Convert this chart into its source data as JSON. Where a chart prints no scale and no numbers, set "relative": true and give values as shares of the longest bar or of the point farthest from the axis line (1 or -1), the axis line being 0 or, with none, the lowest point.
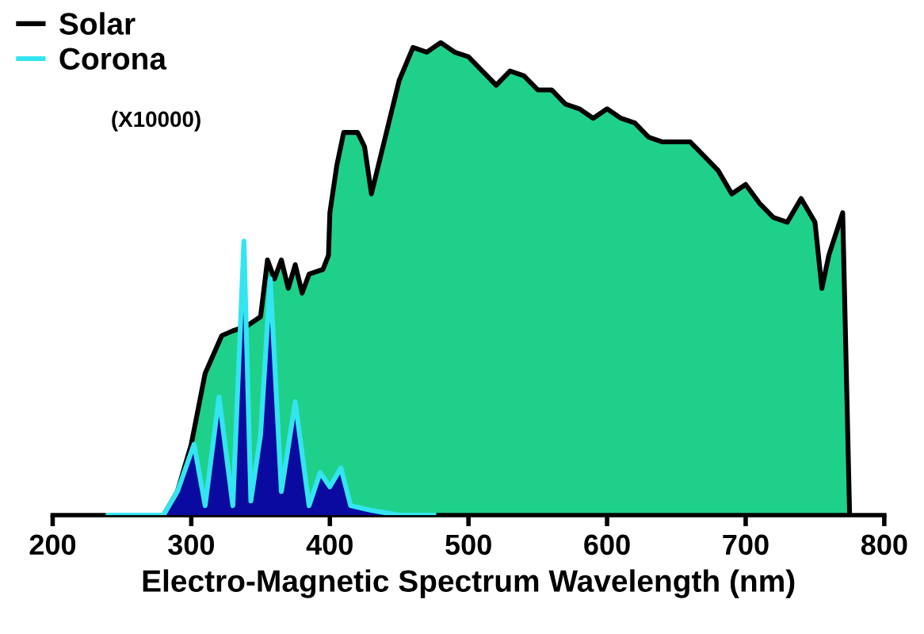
{
  "chart_data": {
    "type": "area",
    "relative": true,
    "xlabel": "Electro-Magnetic Spectrum Wavelength (nm)",
    "xlim": [
      200,
      800
    ],
    "xticks": [
      200,
      300,
      400,
      500,
      600,
      700,
      800
    ],
    "tick_labels": "x",
    "grid": false,
    "legend": "top left",
    "annotations": [
      "(X10000)"
    ],
    "series": [
      {
        "name": "Solar",
        "color": "#000000",
        "x": [
          280,
          290,
          300,
          310,
          322,
          330,
          340,
          350,
          355,
          360,
          365,
          370,
          375,
          380,
          385,
          395,
          399,
          400,
          405,
          410,
          420,
          425,
          430,
          440,
          450,
          460,
          470,
          480,
          490,
          500,
          510,
          520,
          530,
          540,
          550,
          560,
          570,
          580,
          590,
          600,
          610,
          620,
          630,
          640,
          650,
          660,
          670,
          680,
          690,
          700,
          710,
          720,
          730,
          740,
          750,
          755,
          760,
          770,
          775
        ],
        "values": [
          0,
          0.05,
          0.15,
          0.3,
          0.38,
          0.39,
          0.4,
          0.42,
          0.54,
          0.5,
          0.54,
          0.48,
          0.53,
          0.47,
          0.51,
          0.52,
          0.55,
          0.64,
          0.74,
          0.81,
          0.81,
          0.78,
          0.68,
          0.8,
          0.92,
          0.99,
          0.98,
          1.0,
          0.98,
          0.97,
          0.94,
          0.91,
          0.94,
          0.93,
          0.9,
          0.9,
          0.87,
          0.86,
          0.84,
          0.86,
          0.84,
          0.83,
          0.8,
          0.79,
          0.79,
          0.79,
          0.76,
          0.73,
          0.68,
          0.7,
          0.66,
          0.63,
          0.62,
          0.67,
          0.62,
          0.48,
          0.55,
          0.64,
          0
        ]
      },
      {
        "name": "Corona",
        "color": "#33e5f0",
        "x": [
          240,
          280,
          290,
          302,
          310,
          320,
          330,
          338,
          343,
          350,
          357,
          365,
          375,
          385,
          393,
          400,
          408,
          415,
          430,
          450,
          475
        ],
        "values": [
          0,
          0,
          0.05,
          0.15,
          0.02,
          0.25,
          0.02,
          0.58,
          0.03,
          0.17,
          0.5,
          0.05,
          0.24,
          0.02,
          0.09,
          0.06,
          0.1,
          0.02,
          0.01,
          0,
          0
        ]
      }
    ]
  }
}
